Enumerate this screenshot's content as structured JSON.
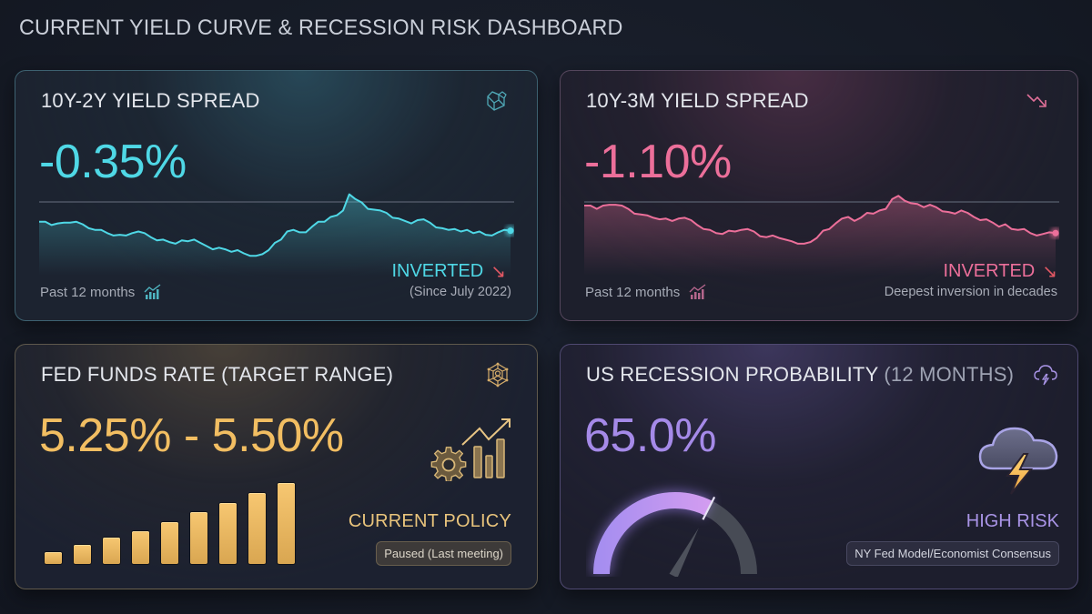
{
  "header": {
    "title": "CURRENT YIELD CURVE & RECESSION RISK DASHBOARD"
  },
  "cards": {
    "spread_10y2y": {
      "title": "10Y-2Y YIELD SPREAD",
      "value": "-0.35%",
      "icon": "cube-icon",
      "period_label": "Past 12 months",
      "status": "INVERTED",
      "status_arrow": "↘",
      "status_sub": "(Since July 2022)",
      "accent": "#4fd8e6"
    },
    "spread_10y3m": {
      "title": "10Y-3M YIELD SPREAD",
      "value": "-1.10%",
      "icon": "trend-down-icon",
      "period_label": "Past 12 months",
      "status": "INVERTED",
      "status_arrow": "↘",
      "status_sub": "Deepest inversion in decades",
      "accent": "#ec6f9a"
    },
    "fed_funds": {
      "title": "FED FUNDS RATE (TARGET RANGE)",
      "value": "5.25% - 5.50%",
      "icon": "network-icon",
      "policy_label": "CURRENT POLICY",
      "policy_pill": "Paused (Last meeting)",
      "accent": "#f2be62"
    },
    "recession_prob": {
      "title": "US RECESSION PROBABILITY",
      "title_suffix": "(12 MONTHS)",
      "value": "65.0%",
      "icon": "storm-cloud-icon",
      "risk_label": "HIGH RISK",
      "source_pill": "NY Fed Model/Economist Consensus",
      "accent": "#a58ae8"
    }
  },
  "chart_data": [
    {
      "type": "line",
      "title": "10Y-2Y Yield Spread — Past 12 months",
      "xlabel": "",
      "ylabel": "",
      "baseline_line": true,
      "values": [
        0.62,
        0.62,
        0.58,
        0.6,
        0.61,
        0.61,
        0.62,
        0.59,
        0.54,
        0.52,
        0.52,
        0.48,
        0.45,
        0.46,
        0.45,
        0.48,
        0.5,
        0.48,
        0.43,
        0.39,
        0.4,
        0.37,
        0.35,
        0.39,
        0.38,
        0.4,
        0.36,
        0.32,
        0.28,
        0.3,
        0.28,
        0.25,
        0.27,
        0.23,
        0.2,
        0.2,
        0.22,
        0.27,
        0.36,
        0.4,
        0.5,
        0.52,
        0.49,
        0.49,
        0.56,
        0.62,
        0.62,
        0.68,
        0.7,
        0.76,
        0.96,
        0.9,
        0.86,
        0.78,
        0.77,
        0.76,
        0.73,
        0.67,
        0.66,
        0.63,
        0.6,
        0.64,
        0.65,
        0.61,
        0.55,
        0.54,
        0.52,
        0.53,
        0.5,
        0.52,
        0.48,
        0.5,
        0.46,
        0.45,
        0.49,
        0.52,
        0.51
      ],
      "last_point_marker": true
    },
    {
      "type": "line",
      "title": "10Y-3M Yield Spread — Past 12 months",
      "xlabel": "",
      "ylabel": "",
      "baseline_line": true,
      "values": [
        0.82,
        0.82,
        0.78,
        0.82,
        0.83,
        0.83,
        0.82,
        0.78,
        0.72,
        0.71,
        0.7,
        0.67,
        0.65,
        0.66,
        0.63,
        0.66,
        0.67,
        0.64,
        0.58,
        0.53,
        0.52,
        0.48,
        0.47,
        0.51,
        0.5,
        0.52,
        0.53,
        0.5,
        0.44,
        0.43,
        0.45,
        0.42,
        0.4,
        0.38,
        0.35,
        0.35,
        0.37,
        0.42,
        0.51,
        0.53,
        0.6,
        0.66,
        0.68,
        0.63,
        0.67,
        0.73,
        0.72,
        0.76,
        0.78,
        0.9,
        0.94,
        0.88,
        0.85,
        0.84,
        0.8,
        0.83,
        0.8,
        0.75,
        0.74,
        0.72,
        0.76,
        0.73,
        0.68,
        0.64,
        0.65,
        0.61,
        0.56,
        0.59,
        0.53,
        0.52,
        0.53,
        0.48,
        0.45,
        0.47,
        0.49,
        0.48
      ],
      "last_point_marker": true
    },
    {
      "type": "bar",
      "title": "Fed Funds Rate Hikes",
      "categories": [
        "1",
        "2",
        "3",
        "4",
        "5",
        "6",
        "7",
        "8",
        "9"
      ],
      "values": [
        13,
        21,
        29,
        36,
        46,
        57,
        67,
        78,
        89
      ],
      "xlabel": "",
      "ylabel": ""
    },
    {
      "type": "gauge",
      "title": "US Recession Probability (12 months)",
      "value": 65.0,
      "range": [
        0,
        100
      ]
    }
  ]
}
